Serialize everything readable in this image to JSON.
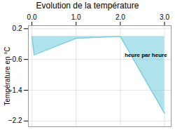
{
  "chart_data": {
    "type": "area",
    "title": "Evolution de la température",
    "ylabel": "Température en °C",
    "x": [
      0,
      0.05,
      1,
      2,
      3
    ],
    "values": [
      0.0,
      -0.48,
      -0.05,
      0.0,
      -2.0
    ],
    "xlim": [
      -0.08,
      3.15
    ],
    "ylim": [
      -2.35,
      0.28
    ],
    "xticks": [
      0,
      1,
      2,
      3
    ],
    "yticks": [
      0.2,
      -0.6,
      -1.4,
      -2.2
    ],
    "color": "#7bcfdf",
    "grid": true,
    "annotations": [
      {
        "text": "heure par heure",
        "x": 2.1,
        "y": -0.42
      }
    ]
  }
}
